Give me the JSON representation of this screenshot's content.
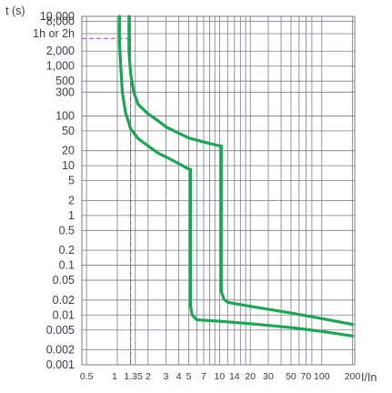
{
  "chart_data": {
    "type": "line",
    "title": "",
    "xlabel": "I/In",
    "ylabel": "t (s)",
    "x_scale": "log",
    "y_scale": "log",
    "xlim": [
      0.45,
      210
    ],
    "ylim": [
      0.001,
      10000
    ],
    "grid": true,
    "legend": "none",
    "colors": {
      "curve": "#1aa653",
      "grid": "#7c7c86",
      "marker": "#b23a7a",
      "text": "#3c3c46"
    },
    "x_ticks": [
      {
        "value": 0.5,
        "label": "0.5"
      },
      {
        "value": 1,
        "label": "1"
      },
      {
        "value": 1.35,
        "label": "1.35"
      },
      {
        "value": 2,
        "label": "2"
      },
      {
        "value": 3,
        "label": "3"
      },
      {
        "value": 4,
        "label": "4"
      },
      {
        "value": 5,
        "label": "5"
      },
      {
        "value": 7,
        "label": "7"
      },
      {
        "value": 10,
        "label": "10"
      },
      {
        "value": 14,
        "label": "14"
      },
      {
        "value": 20,
        "label": "20"
      },
      {
        "value": 30,
        "label": "30"
      },
      {
        "value": 50,
        "label": "50"
      },
      {
        "value": 70,
        "label": "70"
      },
      {
        "value": 100,
        "label": "100"
      },
      {
        "value": 200,
        "label": "200"
      }
    ],
    "x_gridlines": [
      0.5,
      1,
      1.35,
      1.5,
      2,
      3,
      4,
      5,
      6,
      7,
      8,
      9,
      10,
      12,
      14,
      16,
      18,
      20,
      30,
      40,
      50,
      60,
      70,
      80,
      100,
      200
    ],
    "y_ticks": [
      {
        "value": 10000,
        "label": "10,000"
      },
      {
        "value": 8000,
        "label": "8,000"
      },
      {
        "value": 4500,
        "label": "1h or 2h"
      },
      {
        "value": 2000,
        "label": "2,000"
      },
      {
        "value": 1000,
        "label": "1,000"
      },
      {
        "value": 500,
        "label": "500"
      },
      {
        "value": 300,
        "label": "300"
      },
      {
        "value": 100,
        "label": "100"
      },
      {
        "value": 50,
        "label": "50"
      },
      {
        "value": 20,
        "label": "20"
      },
      {
        "value": 10,
        "label": "10"
      },
      {
        "value": 5,
        "label": "5"
      },
      {
        "value": 2,
        "label": "2"
      },
      {
        "value": 1,
        "label": "1"
      },
      {
        "value": 0.5,
        "label": "0.5"
      },
      {
        "value": 0.2,
        "label": "0.2"
      },
      {
        "value": 0.1,
        "label": "0.1"
      },
      {
        "value": 0.05,
        "label": "0.05"
      },
      {
        "value": 0.02,
        "label": "0.02"
      },
      {
        "value": 0.01,
        "label": "0.01"
      },
      {
        "value": 0.005,
        "label": "0.005"
      },
      {
        "value": 0.002,
        "label": "0.002"
      },
      {
        "value": 0.001,
        "label": "0.001"
      }
    ],
    "marker_lines": {
      "x": 1.35,
      "y": 3600
    },
    "series": [
      {
        "points": [
          [
            1.05,
            10000
          ],
          [
            1.05,
            3000
          ],
          [
            1.08,
            1000
          ],
          [
            1.12,
            300
          ],
          [
            1.2,
            120
          ],
          [
            1.35,
            55
          ],
          [
            1.6,
            35
          ],
          [
            2,
            25
          ],
          [
            2.5,
            18
          ],
          [
            3,
            15
          ],
          [
            4,
            11
          ],
          [
            5,
            8.5
          ],
          [
            5.2,
            8.5
          ],
          [
            5.2,
            0.1
          ],
          [
            5.2,
            0.015
          ],
          [
            5.4,
            0.01
          ],
          [
            6,
            0.008
          ],
          [
            10,
            0.0075
          ],
          [
            20,
            0.0067
          ],
          [
            50,
            0.0056
          ],
          [
            100,
            0.0047
          ],
          [
            200,
            0.0038
          ]
        ]
      },
      {
        "points": [
          [
            1.3,
            10000
          ],
          [
            1.3,
            2000
          ],
          [
            1.35,
            700
          ],
          [
            1.45,
            300
          ],
          [
            1.6,
            170
          ],
          [
            2,
            110
          ],
          [
            2.5,
            80
          ],
          [
            3,
            60
          ],
          [
            4,
            45
          ],
          [
            5,
            36
          ],
          [
            7,
            30
          ],
          [
            10,
            25
          ],
          [
            10.4,
            25
          ],
          [
            10.4,
            0.2
          ],
          [
            10.4,
            0.03
          ],
          [
            11,
            0.021
          ],
          [
            12,
            0.018
          ],
          [
            20,
            0.015
          ],
          [
            50,
            0.011
          ],
          [
            100,
            0.0085
          ],
          [
            200,
            0.0065
          ]
        ]
      }
    ]
  }
}
